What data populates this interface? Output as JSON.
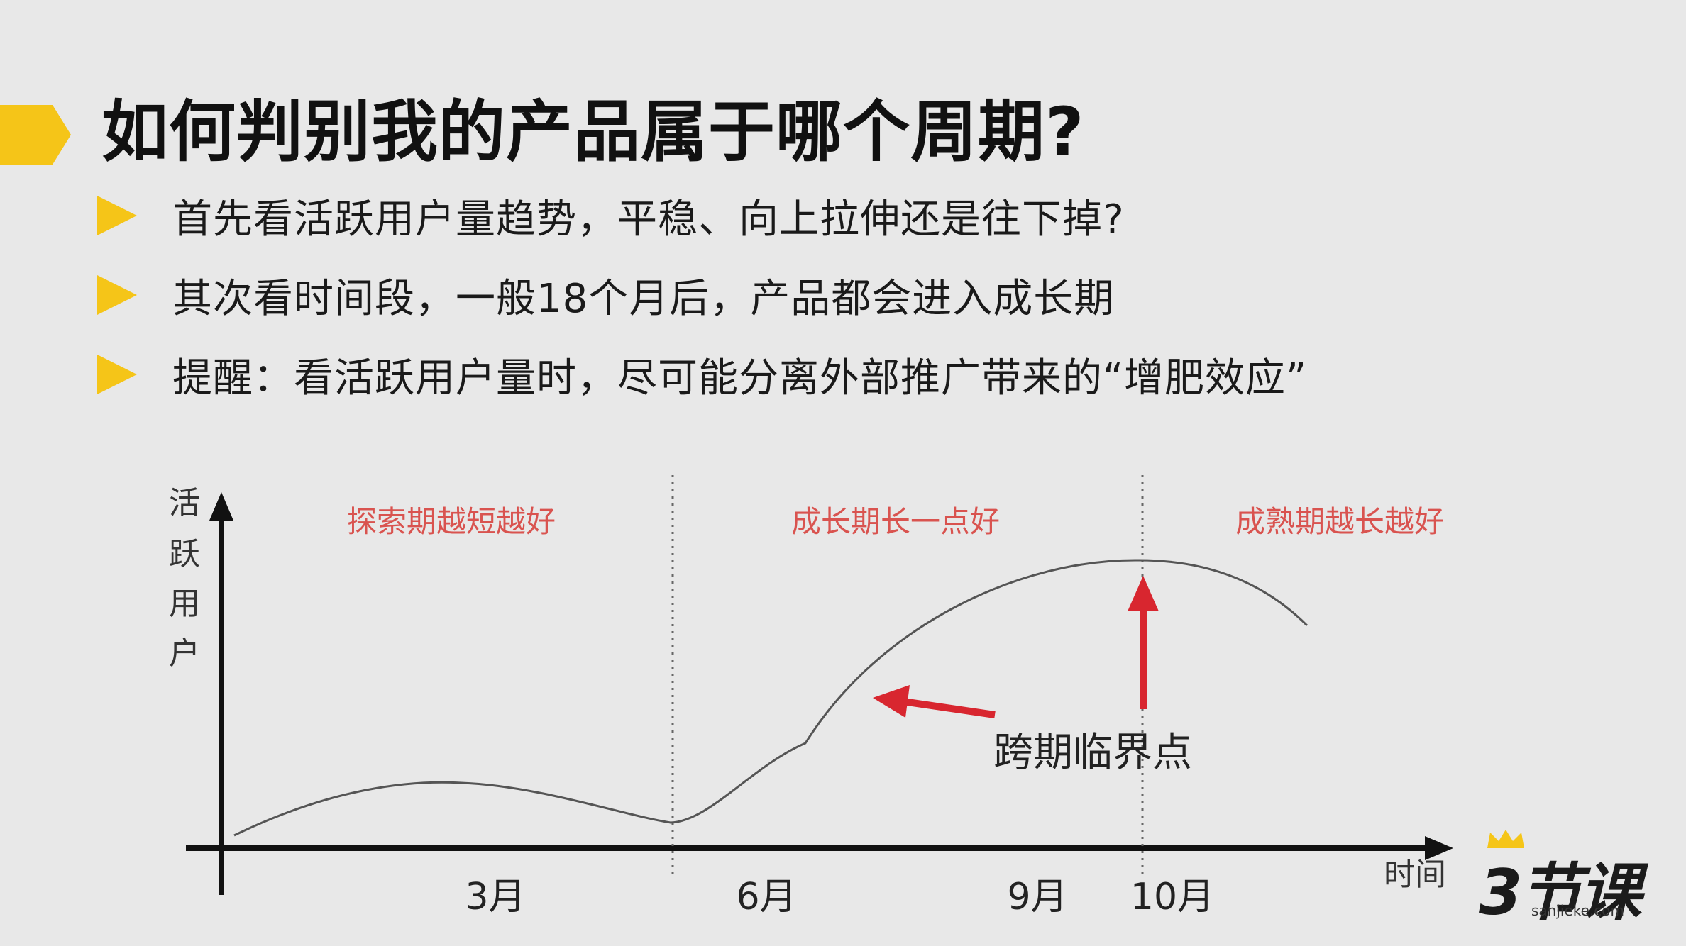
{
  "title": "如何判别我的产品属于哪个周期?",
  "bullets": [
    "首先看活跃用户量趋势，平稳、向上拉伸还是往下掉?",
    "其次看时间段，一般18个月后，产品都会进入成长期",
    "提醒：看活跃用户量时，尽可能分离外部推广带来的“增肥效应”"
  ],
  "diagram": {
    "y_axis_label": [
      "活",
      "跃",
      "用",
      "户"
    ],
    "x_axis_label": "时间",
    "x_ticks": [
      "3月",
      "6月",
      "9月",
      "10月"
    ],
    "phases": [
      "探索期越短越好",
      "成长期长一点好",
      "成熟期越长越好"
    ],
    "annotation": "跨期临界点",
    "colors": {
      "phase_text": "#d9534f",
      "arrow": "#d8262f",
      "curve": "#555555",
      "accent": "#f5c518"
    }
  },
  "logo": {
    "main": "3节课",
    "sub": "sanjieke.com"
  }
}
